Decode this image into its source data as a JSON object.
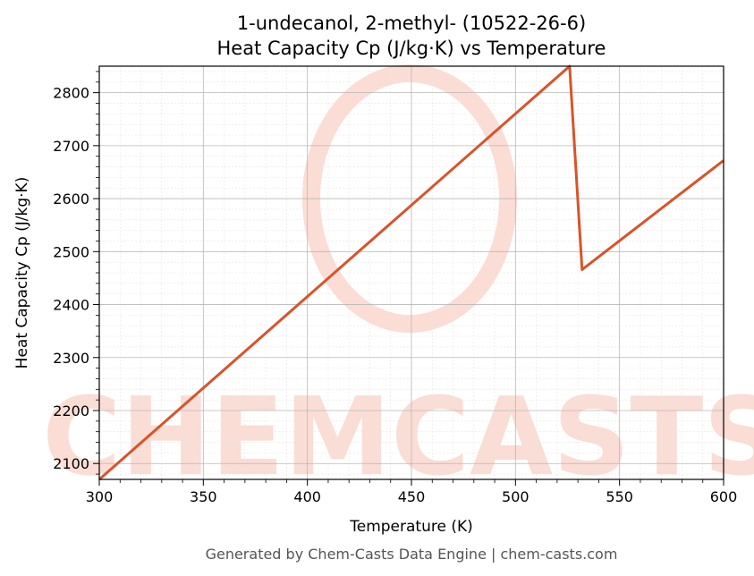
{
  "chart_data": {
    "type": "line",
    "title": "1-undecanol, 2-methyl- (10522-26-6)",
    "subtitle": "Heat Capacity Cp (J/kg·K) vs Temperature",
    "xlabel": "Temperature (K)",
    "ylabel": "Heat Capacity Cp (J/kg·K)",
    "xlim": [
      300,
      600
    ],
    "ylim": [
      2070,
      2850
    ],
    "xticks": [
      300,
      350,
      400,
      450,
      500,
      550,
      600
    ],
    "yticks": [
      2100,
      2200,
      2300,
      2400,
      2500,
      2600,
      2700,
      2800
    ],
    "grid": true,
    "line_color": "#d9532a",
    "series": [
      {
        "points": [
          [
            300,
            2070
          ],
          [
            526,
            2850
          ],
          [
            532,
            2466
          ],
          [
            600,
            2672
          ]
        ]
      }
    ]
  },
  "watermark": "CHEMCASTS",
  "footer": "Generated by Chem-Casts Data Engine | chem-casts.com"
}
